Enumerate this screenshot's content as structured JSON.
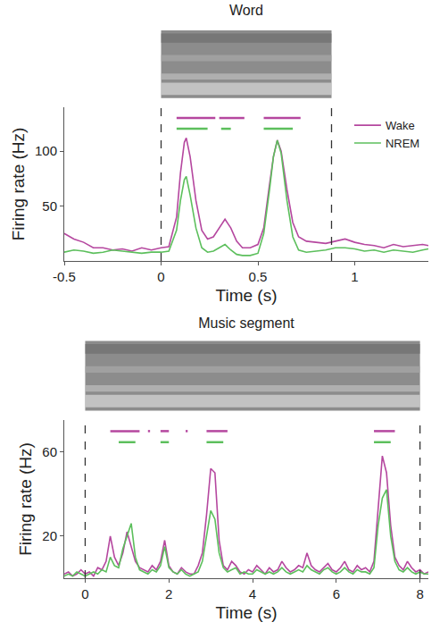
{
  "chart_data": [
    {
      "type": "line",
      "title": "Word",
      "x_label": "Time (s)",
      "y_label": "Firing rate (Hz)",
      "x": [
        -0.5,
        -0.45,
        -0.4,
        -0.35,
        -0.3,
        -0.25,
        -0.2,
        -0.15,
        -0.1,
        -0.05,
        0,
        0.04,
        0.08,
        0.1,
        0.12,
        0.13,
        0.15,
        0.18,
        0.21,
        0.24,
        0.27,
        0.3,
        0.33,
        0.36,
        0.39,
        0.42,
        0.46,
        0.5,
        0.53,
        0.56,
        0.58,
        0.6,
        0.62,
        0.65,
        0.68,
        0.71,
        0.75,
        0.8,
        0.85,
        0.9,
        0.95,
        1.0,
        1.05,
        1.1,
        1.15,
        1.2,
        1.25,
        1.3,
        1.35,
        1.38
      ],
      "series": [
        {
          "name": "Wake",
          "color": "#b5479f",
          "values": [
            25,
            20,
            17,
            12,
            12,
            10,
            11,
            9,
            12,
            10,
            12,
            13,
            40,
            80,
            108,
            112,
            95,
            55,
            28,
            20,
            22,
            30,
            38,
            30,
            18,
            12,
            12,
            15,
            30,
            70,
            95,
            110,
            100,
            65,
            35,
            22,
            18,
            17,
            16,
            18,
            20,
            17,
            15,
            14,
            12,
            15,
            13,
            14,
            15,
            14
          ],
          "significance": [
            [
              0.08,
              0.28
            ],
            [
              0.3,
              0.43
            ],
            [
              0.53,
              0.72
            ]
          ]
        },
        {
          "name": "NREM",
          "color": "#5cbf5c",
          "values": [
            8,
            10,
            9,
            7,
            8,
            10,
            9,
            8,
            7,
            8,
            8,
            9,
            28,
            55,
            74,
            77,
            60,
            30,
            12,
            8,
            9,
            12,
            15,
            10,
            6,
            5,
            5,
            7,
            25,
            65,
            95,
            110,
            98,
            55,
            22,
            10,
            8,
            9,
            10,
            12,
            12,
            11,
            9,
            10,
            8,
            10,
            9,
            8,
            10,
            11
          ],
          "significance": [
            [
              0.08,
              0.24
            ],
            [
              0.31,
              0.36
            ],
            [
              0.53,
              0.68
            ]
          ]
        }
      ],
      "xlim": [
        -0.5,
        1.38
      ],
      "xticks": [
        -0.5,
        0,
        0.5,
        1
      ],
      "ylim": [
        0,
        140
      ],
      "yticks": [
        50,
        100
      ],
      "vlines": [
        0,
        0.88
      ],
      "legend": "upper right"
    },
    {
      "type": "line",
      "title": "Music segment",
      "x_label": "Time (s)",
      "y_label": "Firing rate (Hz)",
      "x": [
        -0.5,
        -0.4,
        -0.3,
        -0.2,
        -0.1,
        0,
        0.1,
        0.2,
        0.3,
        0.4,
        0.5,
        0.6,
        0.7,
        0.8,
        0.9,
        1.0,
        1.1,
        1.2,
        1.3,
        1.4,
        1.5,
        1.6,
        1.7,
        1.8,
        1.9,
        2.0,
        2.1,
        2.2,
        2.3,
        2.4,
        2.5,
        2.6,
        2.7,
        2.8,
        2.9,
        3.0,
        3.1,
        3.2,
        3.3,
        3.4,
        3.5,
        3.6,
        3.7,
        3.8,
        3.9,
        4.0,
        4.1,
        4.2,
        4.3,
        4.4,
        4.5,
        4.6,
        4.7,
        4.8,
        4.9,
        5.0,
        5.1,
        5.2,
        5.3,
        5.4,
        5.5,
        5.6,
        5.7,
        5.8,
        5.9,
        6.0,
        6.1,
        6.2,
        6.3,
        6.4,
        6.5,
        6.6,
        6.7,
        6.8,
        6.9,
        7.0,
        7.1,
        7.2,
        7.3,
        7.4,
        7.5,
        7.6,
        7.7,
        7.8,
        7.9,
        8.0,
        8.1,
        8.2
      ],
      "series": [
        {
          "name": "Wake",
          "color": "#b5479f",
          "values": [
            2,
            3,
            1,
            2,
            4,
            2,
            3,
            1,
            5,
            4,
            8,
            20,
            10,
            6,
            12,
            22,
            15,
            8,
            5,
            4,
            3,
            6,
            4,
            8,
            18,
            6,
            3,
            2,
            5,
            3,
            2,
            2,
            6,
            12,
            30,
            52,
            50,
            18,
            6,
            4,
            8,
            6,
            3,
            2,
            4,
            3,
            6,
            4,
            2,
            5,
            3,
            4,
            8,
            5,
            3,
            4,
            6,
            5,
            12,
            6,
            4,
            3,
            5,
            7,
            4,
            3,
            5,
            8,
            4,
            3,
            6,
            4,
            5,
            3,
            8,
            35,
            58,
            50,
            25,
            10,
            6,
            4,
            8,
            5,
            3,
            4,
            2,
            3
          ],
          "significance": [
            [
              0.6,
              1.3
            ],
            [
              1.5,
              1.55
            ],
            [
              1.8,
              2.0
            ],
            [
              2.4,
              2.45
            ],
            [
              2.9,
              3.4
            ],
            [
              6.9,
              7.4
            ]
          ]
        },
        {
          "name": "NREM",
          "color": "#5cbf5c",
          "values": [
            1,
            2,
            1,
            3,
            2,
            1,
            2,
            3,
            2,
            4,
            3,
            10,
            6,
            5,
            14,
            20,
            26,
            10,
            4,
            3,
            2,
            4,
            3,
            6,
            15,
            5,
            3,
            2,
            4,
            2,
            1,
            2,
            3,
            8,
            20,
            32,
            28,
            12,
            5,
            3,
            4,
            5,
            2,
            3,
            2,
            2,
            4,
            3,
            2,
            3,
            2,
            3,
            5,
            3,
            2,
            3,
            4,
            3,
            6,
            4,
            3,
            2,
            4,
            5,
            3,
            2,
            3,
            5,
            3,
            2,
            4,
            3,
            3,
            2,
            5,
            25,
            38,
            42,
            20,
            8,
            4,
            3,
            5,
            3,
            2,
            3,
            2,
            2
          ],
          "significance": [
            [
              0.8,
              1.2
            ],
            [
              1.8,
              2.0
            ],
            [
              2.9,
              3.3
            ],
            [
              6.9,
              7.3
            ]
          ]
        }
      ],
      "xlim": [
        -0.5,
        8.2
      ],
      "xticks": [
        0,
        2,
        4,
        6,
        8
      ],
      "ylim": [
        0,
        75
      ],
      "yticks": [
        20,
        60
      ],
      "vlines": [
        0,
        8
      ]
    }
  ]
}
